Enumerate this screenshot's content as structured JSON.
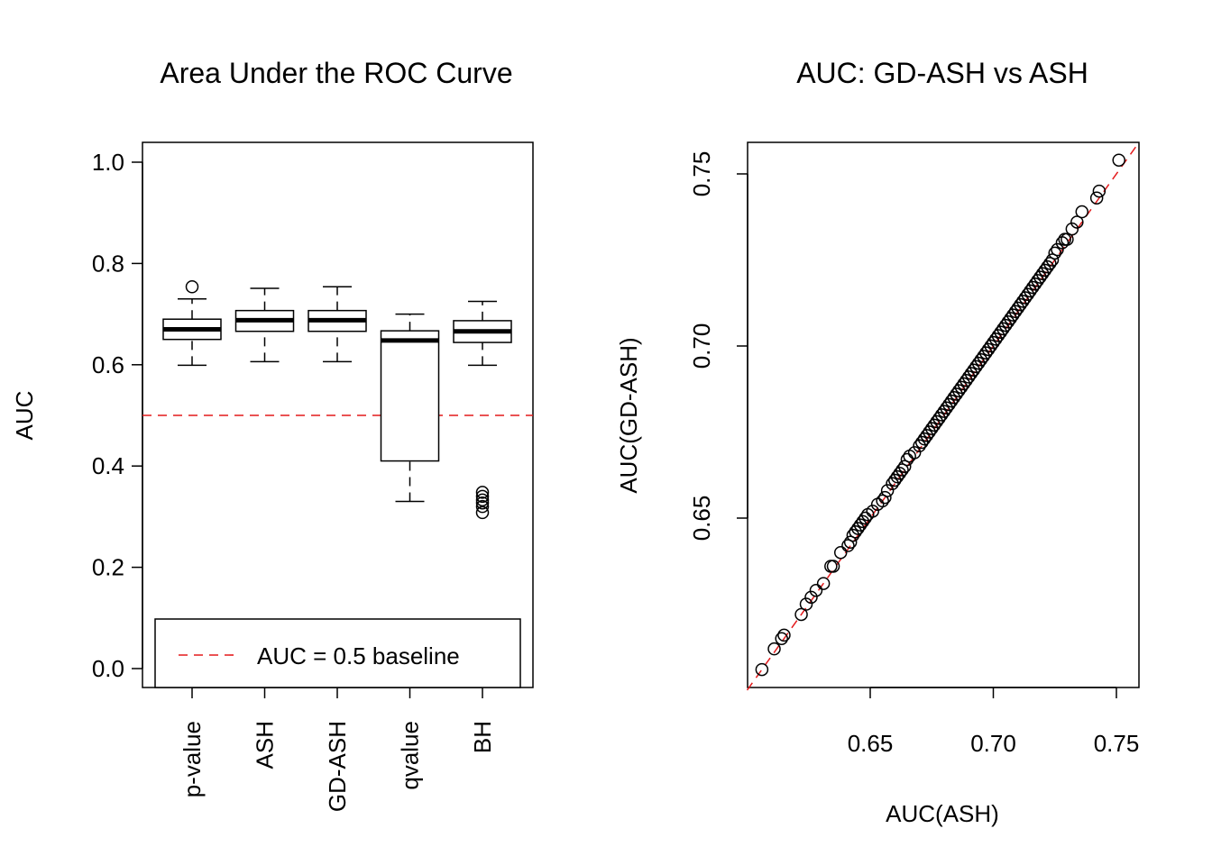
{
  "colors": {
    "baseline": "#e41a1c",
    "ink": "#000000",
    "background": "#ffffff"
  },
  "chart_data": [
    {
      "type": "boxplot",
      "title": "Area Under the ROC Curve",
      "xlabel": "",
      "ylabel": "AUC",
      "ylim": [
        0.0,
        1.0
      ],
      "yticks": [
        "0.0",
        "0.2",
        "0.4",
        "0.6",
        "0.8",
        "1.0"
      ],
      "categories": [
        "p-value",
        "ASH",
        "GD-ASH",
        "qvalue",
        "BH"
      ],
      "boxes": [
        {
          "name": "p-value",
          "whisker_low": 0.599,
          "q1": 0.65,
          "median": 0.67,
          "q3": 0.69,
          "whisker_high": 0.73,
          "outliers": [
            0.754
          ]
        },
        {
          "name": "ASH",
          "whisker_low": 0.606,
          "q1": 0.666,
          "median": 0.688,
          "q3": 0.707,
          "whisker_high": 0.751,
          "outliers": []
        },
        {
          "name": "GD-ASH",
          "whisker_low": 0.606,
          "q1": 0.666,
          "median": 0.688,
          "q3": 0.707,
          "whisker_high": 0.754,
          "outliers": []
        },
        {
          "name": "qvalue",
          "whisker_low": 0.33,
          "q1": 0.41,
          "median": 0.648,
          "q3": 0.667,
          "whisker_high": 0.7,
          "outliers": []
        },
        {
          "name": "BH",
          "whisker_low": 0.599,
          "q1": 0.644,
          "median": 0.666,
          "q3": 0.687,
          "whisker_high": 0.725,
          "outliers": [
            0.348,
            0.34,
            0.333,
            0.327,
            0.32,
            0.308
          ]
        }
      ],
      "reference_line": {
        "y": 0.5,
        "label": "AUC = 0.5 baseline",
        "style": "dashed"
      },
      "legend": {
        "position": "bottom",
        "label": "AUC = 0.5 baseline"
      }
    },
    {
      "type": "scatter",
      "title": "AUC: GD-ASH vs ASH",
      "xlabel": "AUC(ASH)",
      "ylabel": "AUC(GD-ASH)",
      "xlim": [
        0.6,
        0.758
      ],
      "ylim": [
        0.6,
        0.758
      ],
      "xticks": [
        "0.65",
        "0.70",
        "0.75"
      ],
      "yticks": [
        "0.65",
        "0.70",
        "0.75"
      ],
      "reference_line": {
        "type": "identity",
        "style": "dashed"
      },
      "points": [
        [
          0.606,
          0.606
        ],
        [
          0.611,
          0.612
        ],
        [
          0.614,
          0.615
        ],
        [
          0.615,
          0.616
        ],
        [
          0.622,
          0.622
        ],
        [
          0.624,
          0.625
        ],
        [
          0.626,
          0.627
        ],
        [
          0.628,
          0.629
        ],
        [
          0.631,
          0.631
        ],
        [
          0.634,
          0.636
        ],
        [
          0.635,
          0.636
        ],
        [
          0.638,
          0.64
        ],
        [
          0.641,
          0.642
        ],
        [
          0.642,
          0.643
        ],
        [
          0.643,
          0.645
        ],
        [
          0.644,
          0.646
        ],
        [
          0.645,
          0.647
        ],
        [
          0.646,
          0.648
        ],
        [
          0.647,
          0.649
        ],
        [
          0.648,
          0.65
        ],
        [
          0.649,
          0.651
        ],
        [
          0.651,
          0.652
        ],
        [
          0.653,
          0.654
        ],
        [
          0.655,
          0.655
        ],
        [
          0.656,
          0.656
        ],
        [
          0.657,
          0.658
        ],
        [
          0.659,
          0.66
        ],
        [
          0.66,
          0.661
        ],
        [
          0.661,
          0.662
        ],
        [
          0.662,
          0.663
        ],
        [
          0.663,
          0.664
        ],
        [
          0.664,
          0.665
        ],
        [
          0.665,
          0.667
        ],
        [
          0.666,
          0.668
        ],
        [
          0.668,
          0.669
        ],
        [
          0.67,
          0.671
        ],
        [
          0.671,
          0.672
        ],
        [
          0.672,
          0.673
        ],
        [
          0.673,
          0.674
        ],
        [
          0.674,
          0.675
        ],
        [
          0.675,
          0.676
        ],
        [
          0.676,
          0.677
        ],
        [
          0.677,
          0.678
        ],
        [
          0.678,
          0.679
        ],
        [
          0.679,
          0.68
        ],
        [
          0.68,
          0.681
        ],
        [
          0.681,
          0.682
        ],
        [
          0.682,
          0.683
        ],
        [
          0.683,
          0.684
        ],
        [
          0.684,
          0.685
        ],
        [
          0.685,
          0.686
        ],
        [
          0.686,
          0.687
        ],
        [
          0.687,
          0.688
        ],
        [
          0.688,
          0.689
        ],
        [
          0.689,
          0.69
        ],
        [
          0.69,
          0.691
        ],
        [
          0.691,
          0.692
        ],
        [
          0.692,
          0.693
        ],
        [
          0.693,
          0.694
        ],
        [
          0.694,
          0.695
        ],
        [
          0.695,
          0.696
        ],
        [
          0.696,
          0.697
        ],
        [
          0.697,
          0.698
        ],
        [
          0.698,
          0.699
        ],
        [
          0.699,
          0.7
        ],
        [
          0.7,
          0.701
        ],
        [
          0.701,
          0.702
        ],
        [
          0.702,
          0.703
        ],
        [
          0.703,
          0.704
        ],
        [
          0.704,
          0.705
        ],
        [
          0.705,
          0.706
        ],
        [
          0.706,
          0.707
        ],
        [
          0.707,
          0.708
        ],
        [
          0.708,
          0.709
        ],
        [
          0.709,
          0.71
        ],
        [
          0.71,
          0.711
        ],
        [
          0.711,
          0.712
        ],
        [
          0.712,
          0.713
        ],
        [
          0.713,
          0.714
        ],
        [
          0.714,
          0.715
        ],
        [
          0.715,
          0.716
        ],
        [
          0.716,
          0.717
        ],
        [
          0.717,
          0.718
        ],
        [
          0.718,
          0.719
        ],
        [
          0.719,
          0.72
        ],
        [
          0.72,
          0.721
        ],
        [
          0.721,
          0.722
        ],
        [
          0.722,
          0.723
        ],
        [
          0.723,
          0.724
        ],
        [
          0.724,
          0.725
        ],
        [
          0.725,
          0.727
        ],
        [
          0.726,
          0.728
        ],
        [
          0.728,
          0.73
        ],
        [
          0.729,
          0.731
        ],
        [
          0.73,
          0.731
        ],
        [
          0.732,
          0.734
        ],
        [
          0.734,
          0.736
        ],
        [
          0.736,
          0.739
        ],
        [
          0.742,
          0.743
        ],
        [
          0.743,
          0.745
        ],
        [
          0.751,
          0.754
        ]
      ]
    }
  ]
}
